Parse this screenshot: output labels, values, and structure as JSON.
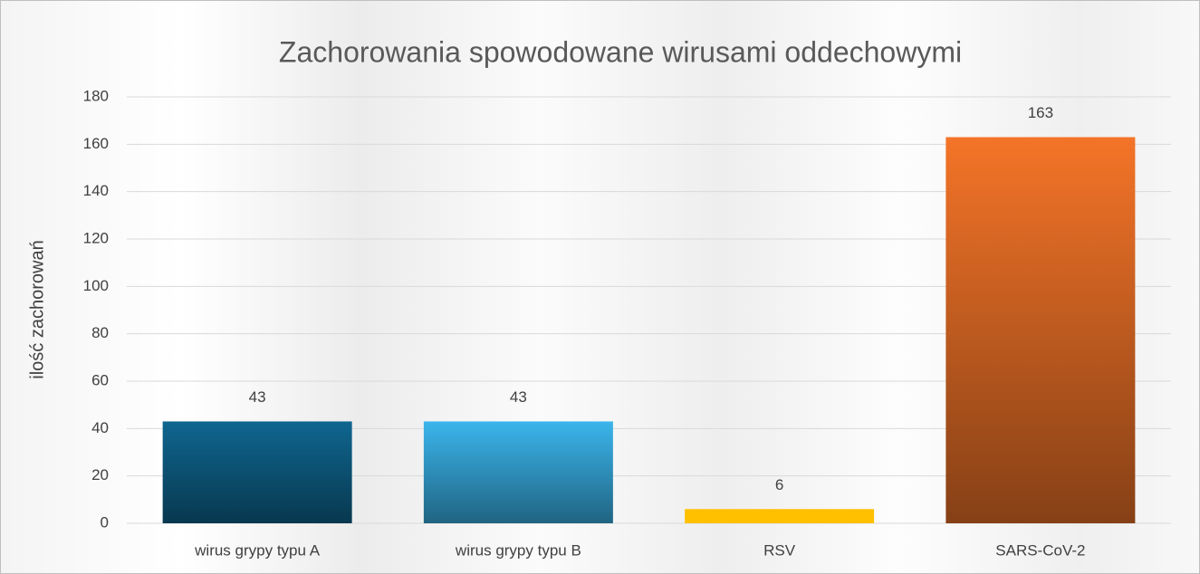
{
  "chart_data": {
    "type": "bar",
    "title": "Zachorowania spowodowane wirusami oddechowymi",
    "y_label": "ilość zachorowań",
    "categories": [
      "wirus grypy typu A",
      "wirus grypy typu B",
      "RSV",
      "SARS-CoV-2"
    ],
    "values": [
      43,
      43,
      6,
      163
    ],
    "colors": [
      "#0f6690",
      "#3bb5ec",
      "#ffc000",
      "#f47428"
    ],
    "ylim": [
      0,
      180
    ],
    "yticks": [
      0,
      20,
      40,
      60,
      80,
      100,
      120,
      140,
      160,
      180
    ],
    "grid": true
  }
}
